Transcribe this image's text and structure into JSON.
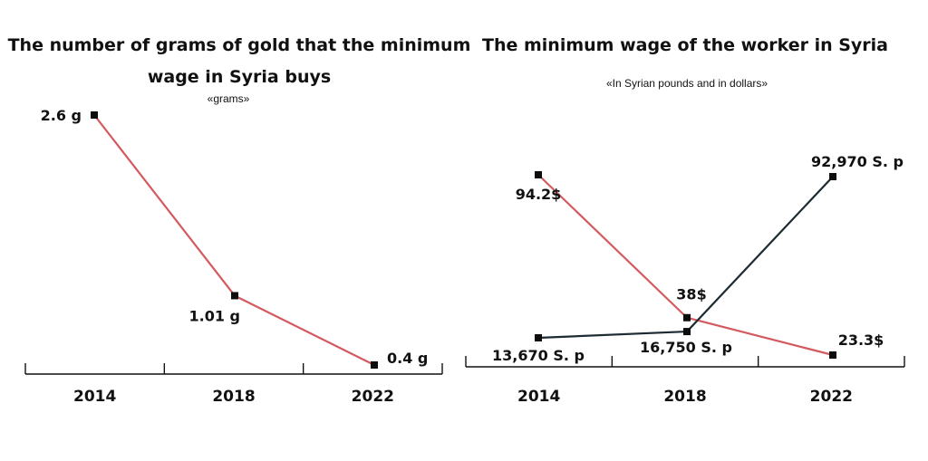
{
  "colors": {
    "red_series": "#d35a5f",
    "dark_series": "#1d2b33",
    "marker": "#0d0d0d",
    "axis": "#111111"
  },
  "chart_data": [
    {
      "type": "line",
      "title_lines": [
        "The number of grams of gold that the minimum",
        "wage in Syria buys"
      ],
      "subtitle": "«grams»",
      "categories": [
        "2014",
        "2018",
        "2022"
      ],
      "series": [
        {
          "values": [
            2.6,
            1.01,
            0.4
          ],
          "labels": [
            "2.6 g",
            "1.01 g",
            "0.4 g"
          ],
          "color": "#d35a5f"
        }
      ]
    },
    {
      "type": "line",
      "title_lines": [
        "The minimum wage of the worker in Syria"
      ],
      "subtitle": "«In Syrian pounds and in dollars»",
      "categories": [
        "2014",
        "2018",
        "2022"
      ],
      "series": [
        {
          "values": [
            94.2,
            38,
            23.3
          ],
          "labels": [
            "94.2$",
            "38$",
            "23.3$"
          ],
          "unit": "$",
          "color": "#d35a5f"
        },
        {
          "values": [
            13670,
            16750,
            92970
          ],
          "labels": [
            "13,670 S. p",
            "16,750 S. p",
            "92,970 S. p"
          ],
          "unit": "S. p",
          "color": "#1d2b33"
        }
      ]
    }
  ]
}
